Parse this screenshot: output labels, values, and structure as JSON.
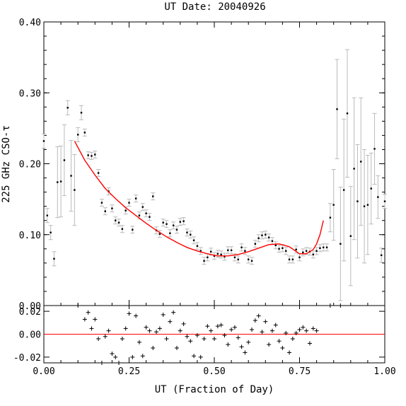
{
  "chart_data": [
    {
      "type": "scatter",
      "panel": "main",
      "title": "UT Date: 20040926",
      "xlabel": "UT (Fraction of Day)",
      "ylabel": "225 GHz CSO-τ",
      "xlim": [
        0,
        1
      ],
      "ylim": [
        0,
        0.4
      ],
      "xticks": [
        "0.00",
        "0.25",
        "0.50",
        "0.75",
        "1.00"
      ],
      "yticks": [
        "0.00",
        "0.10",
        "0.20",
        "0.30",
        "0.40"
      ],
      "grid": false,
      "series": [
        {
          "kind": "points_with_errorbars",
          "color": "#000000",
          "errorbar_color": "#bbbbbb",
          "x": [
            0.0,
            0.01,
            0.02,
            0.03,
            0.04,
            0.05,
            0.06,
            0.07,
            0.08,
            0.09,
            0.1,
            0.11,
            0.12,
            0.13,
            0.14,
            0.15,
            0.16,
            0.17,
            0.18,
            0.19,
            0.2,
            0.21,
            0.22,
            0.23,
            0.24,
            0.25,
            0.26,
            0.27,
            0.28,
            0.29,
            0.3,
            0.31,
            0.32,
            0.33,
            0.34,
            0.35,
            0.36,
            0.37,
            0.38,
            0.39,
            0.4,
            0.41,
            0.42,
            0.43,
            0.44,
            0.45,
            0.46,
            0.47,
            0.48,
            0.49,
            0.5,
            0.51,
            0.52,
            0.53,
            0.54,
            0.55,
            0.56,
            0.57,
            0.58,
            0.59,
            0.6,
            0.61,
            0.62,
            0.63,
            0.64,
            0.65,
            0.66,
            0.67,
            0.68,
            0.69,
            0.7,
            0.71,
            0.72,
            0.73,
            0.74,
            0.75,
            0.76,
            0.77,
            0.78,
            0.79,
            0.8,
            0.81,
            0.82,
            0.83,
            0.84,
            0.85,
            0.86,
            0.87,
            0.88,
            0.89,
            0.9,
            0.91,
            0.92,
            0.93,
            0.94,
            0.95,
            0.96,
            0.97,
            0.98,
            0.99,
            1.0
          ],
          "y": [
            0.232,
            0.127,
            0.103,
            0.066,
            0.174,
            0.175,
            0.205,
            0.279,
            0.183,
            0.163,
            0.241,
            0.272,
            0.244,
            0.212,
            0.211,
            0.213,
            0.187,
            0.145,
            0.133,
            0.161,
            0.137,
            0.12,
            0.117,
            0.108,
            0.134,
            0.145,
            0.107,
            0.151,
            0.127,
            0.139,
            0.13,
            0.125,
            0.154,
            0.106,
            0.101,
            0.117,
            0.115,
            0.102,
            0.113,
            0.107,
            0.118,
            0.119,
            0.103,
            0.1,
            0.092,
            0.084,
            0.077,
            0.063,
            0.068,
            0.076,
            0.07,
            0.073,
            0.072,
            0.069,
            0.078,
            0.078,
            0.068,
            0.065,
            0.082,
            0.077,
            0.065,
            0.063,
            0.087,
            0.095,
            0.099,
            0.1,
            0.096,
            0.091,
            0.085,
            0.08,
            0.081,
            0.077,
            0.065,
            0.065,
            0.079,
            0.068,
            0.075,
            0.077,
            0.076,
            0.072,
            0.077,
            0.081,
            0.082,
            0.082,
            0.124,
            0.142,
            0.277,
            0.087,
            0.163,
            0.271,
            0.098,
            0.193,
            0.147,
            0.203,
            0.14,
            0.142,
            0.165,
            0.221,
            0.153,
            0.071,
            0.147
          ],
          "yerr": [
            0.01,
            0.01,
            0.01,
            0.01,
            0.05,
            0.05,
            0.05,
            0.01,
            0.05,
            0.05,
            0.01,
            0.01,
            0.005,
            0.005,
            0.005,
            0.005,
            0.005,
            0.005,
            0.005,
            0.005,
            0.005,
            0.005,
            0.005,
            0.005,
            0.005,
            0.005,
            0.005,
            0.005,
            0.005,
            0.005,
            0.005,
            0.005,
            0.005,
            0.005,
            0.005,
            0.005,
            0.005,
            0.005,
            0.005,
            0.005,
            0.005,
            0.005,
            0.005,
            0.005,
            0.005,
            0.005,
            0.005,
            0.005,
            0.005,
            0.005,
            0.005,
            0.005,
            0.005,
            0.005,
            0.005,
            0.005,
            0.005,
            0.005,
            0.005,
            0.005,
            0.005,
            0.005,
            0.005,
            0.005,
            0.005,
            0.005,
            0.005,
            0.005,
            0.005,
            0.005,
            0.005,
            0.005,
            0.005,
            0.005,
            0.005,
            0.005,
            0.005,
            0.005,
            0.005,
            0.005,
            0.005,
            0.005,
            0.005,
            0.005,
            0.02,
            0.05,
            0.07,
            0.08,
            0.1,
            0.09,
            0.07,
            0.1,
            0.08,
            0.09,
            0.08,
            0.07,
            0.05,
            0.05,
            0.03,
            0.01,
            0.01
          ]
        },
        {
          "kind": "fit_line",
          "color": "#ff0000",
          "x": [
            0.09,
            0.12,
            0.15,
            0.18,
            0.21,
            0.24,
            0.27,
            0.3,
            0.33,
            0.36,
            0.39,
            0.42,
            0.45,
            0.48,
            0.51,
            0.54,
            0.57,
            0.6,
            0.63,
            0.66,
            0.69,
            0.72,
            0.75,
            0.77,
            0.79,
            0.8,
            0.81,
            0.82
          ],
          "y": [
            0.232,
            0.205,
            0.184,
            0.165,
            0.151,
            0.138,
            0.127,
            0.116,
            0.106,
            0.097,
            0.089,
            0.082,
            0.077,
            0.073,
            0.07,
            0.07,
            0.072,
            0.076,
            0.081,
            0.086,
            0.087,
            0.083,
            0.073,
            0.073,
            0.079,
            0.087,
            0.1,
            0.12
          ]
        }
      ]
    },
    {
      "type": "scatter",
      "panel": "residuals",
      "xlim": [
        0,
        1
      ],
      "ylim": [
        -0.025,
        0.025
      ],
      "yticks": [
        "-0.02",
        "0.00",
        "0.02"
      ],
      "zero_line_color": "#ff0000",
      "series": [
        {
          "kind": "plus_markers",
          "color": "#000000",
          "x": [
            0.1,
            0.12,
            0.13,
            0.14,
            0.15,
            0.16,
            0.17,
            0.18,
            0.19,
            0.2,
            0.21,
            0.22,
            0.23,
            0.24,
            0.25,
            0.26,
            0.27,
            0.28,
            0.29,
            0.3,
            0.31,
            0.32,
            0.33,
            0.34,
            0.35,
            0.36,
            0.37,
            0.38,
            0.39,
            0.4,
            0.41,
            0.42,
            0.43,
            0.44,
            0.45,
            0.46,
            0.47,
            0.48,
            0.49,
            0.5,
            0.51,
            0.52,
            0.53,
            0.54,
            0.55,
            0.56,
            0.57,
            0.58,
            0.59,
            0.6,
            0.61,
            0.62,
            0.63,
            0.64,
            0.65,
            0.66,
            0.67,
            0.68,
            0.69,
            0.7,
            0.71,
            0.72,
            0.73,
            0.74,
            0.75,
            0.76,
            0.77,
            0.78,
            0.79,
            0.8,
            0.84,
            0.87
          ],
          "y": [
            0.025,
            0.013,
            0.019,
            0.005,
            0.013,
            -0.004,
            -0.025,
            -0.002,
            0.003,
            -0.017,
            -0.02,
            -0.025,
            -0.004,
            0.005,
            0.018,
            -0.02,
            0.016,
            -0.007,
            -0.019,
            0.006,
            0.003,
            -0.012,
            0.002,
            0.005,
            0.017,
            -0.004,
            0.011,
            0.019,
            -0.012,
            0.003,
            0.009,
            -0.002,
            -0.006,
            -0.019,
            -0.001,
            -0.02,
            -0.004,
            0.007,
            0.003,
            -0.004,
            0.007,
            0.008,
            -0.001,
            -0.009,
            0.004,
            0.006,
            -0.003,
            -0.011,
            -0.016,
            -0.007,
            0.004,
            0.012,
            0.016,
            0.002,
            0.011,
            -0.009,
            0.003,
            0.008,
            -0.006,
            -0.012,
            0.001,
            -0.016,
            -0.004,
            0.001,
            0.004,
            0.006,
            0.003,
            -0.008,
            0.005,
            0.003,
            0.026,
            0.026
          ]
        }
      ]
    }
  ]
}
